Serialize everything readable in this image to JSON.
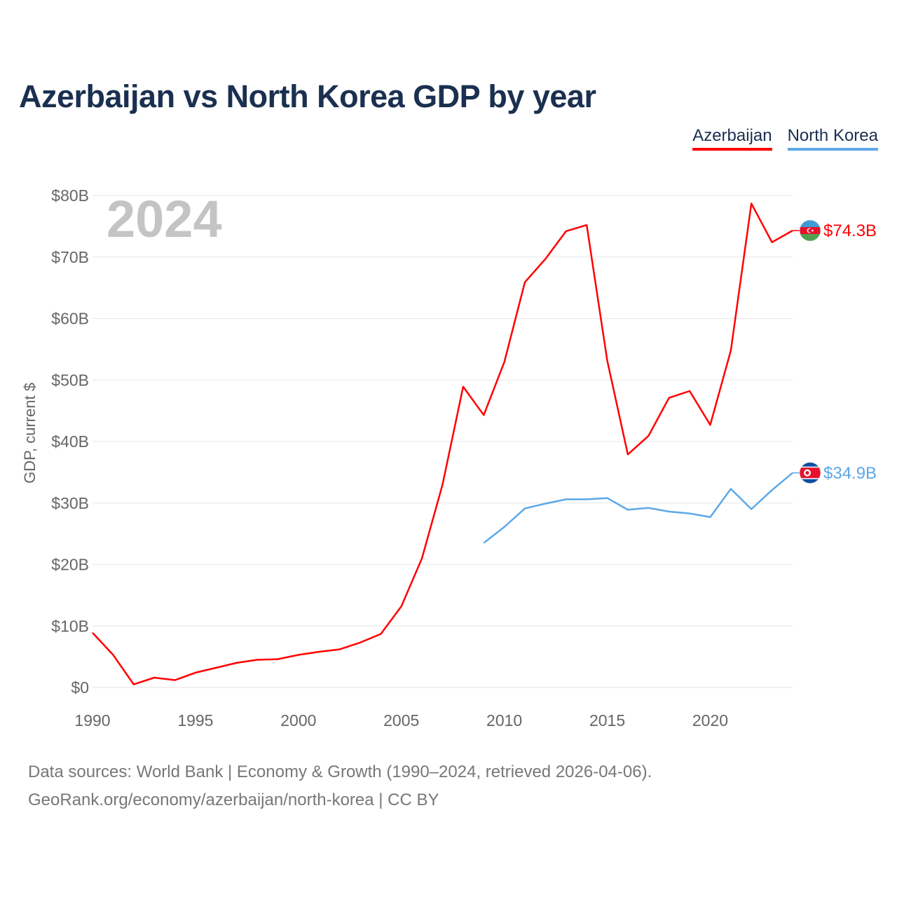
{
  "title": "Azerbaijan vs North Korea GDP by year",
  "legend": [
    {
      "name": "Azerbaijan",
      "color": "#ff0000"
    },
    {
      "name": "North Korea",
      "color": "#5ca8e8"
    }
  ],
  "watermark_year": "2024",
  "footer": {
    "line1": "Data sources: World Bank | Economy & Growth (1990–2024, retrieved 2026-04-06).",
    "line2": "GeoRank.org/economy/azerbaijan/north-korea | CC BY"
  },
  "chart_data": {
    "type": "line",
    "title": "Azerbaijan vs North Korea GDP by year",
    "xlabel": "",
    "ylabel": "GDP, current $",
    "xlim": [
      1990,
      2024
    ],
    "ylim": [
      0,
      80
    ],
    "x_ticks": [
      1990,
      1995,
      2000,
      2005,
      2010,
      2015,
      2020
    ],
    "y_ticks": [
      {
        "value": 0,
        "label": "$0"
      },
      {
        "value": 10,
        "label": "$10B"
      },
      {
        "value": 20,
        "label": "$20B"
      },
      {
        "value": 30,
        "label": "$30B"
      },
      {
        "value": 40,
        "label": "$40B"
      },
      {
        "value": 50,
        "label": "$50B"
      },
      {
        "value": 60,
        "label": "$60B"
      },
      {
        "value": 70,
        "label": "$70B"
      },
      {
        "value": 80,
        "label": "$80B"
      }
    ],
    "grid": true,
    "legend_position": "top-right",
    "series": [
      {
        "name": "Azerbaijan",
        "color": "#ff0000",
        "end_label": "$74.3B",
        "flag": "azerbaijan-flag",
        "x": [
          1990,
          1991,
          1992,
          1993,
          1994,
          1995,
          1996,
          1997,
          1998,
          1999,
          2000,
          2001,
          2002,
          2003,
          2004,
          2005,
          2006,
          2007,
          2008,
          2009,
          2010,
          2011,
          2012,
          2013,
          2014,
          2015,
          2016,
          2017,
          2018,
          2019,
          2020,
          2021,
          2022,
          2023,
          2024
        ],
        "values": [
          8.9,
          5.3,
          0.5,
          1.6,
          1.2,
          2.4,
          3.2,
          4.0,
          4.5,
          4.6,
          5.3,
          5.8,
          6.2,
          7.3,
          8.7,
          13.2,
          21.0,
          33.0,
          48.9,
          44.3,
          52.9,
          65.9,
          69.7,
          74.2,
          75.2,
          53.1,
          37.9,
          40.9,
          47.1,
          48.2,
          42.7,
          54.8,
          78.7,
          72.4,
          74.3
        ]
      },
      {
        "name": "North Korea",
        "color": "#5ca8e8",
        "end_label": "$34.9B",
        "flag": "north-korea-flag",
        "x": [
          2009,
          2010,
          2011,
          2012,
          2013,
          2014,
          2015,
          2016,
          2017,
          2018,
          2019,
          2020,
          2021,
          2022,
          2023,
          2024
        ],
        "values": [
          23.5,
          26.1,
          29.1,
          29.9,
          30.6,
          30.6,
          30.8,
          28.9,
          29.2,
          28.6,
          28.3,
          27.7,
          32.3,
          29.0,
          32.1,
          34.9
        ]
      }
    ]
  }
}
